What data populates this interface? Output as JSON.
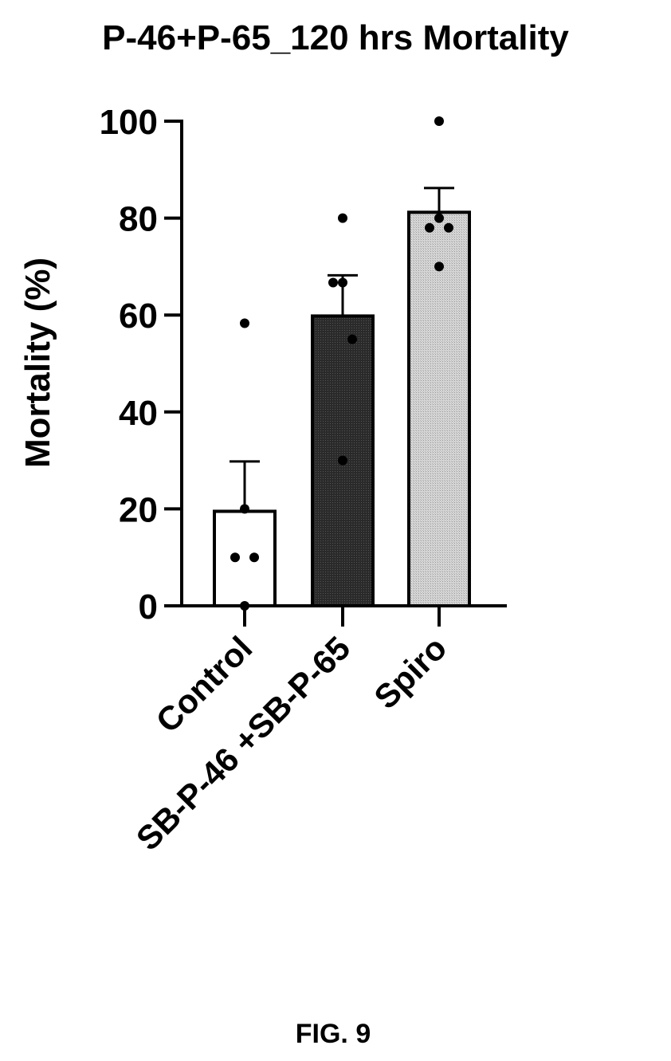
{
  "figure_label": "FIG. 9",
  "chart_data": {
    "type": "bar",
    "title": "P-46+P-65_120 hrs Mortality",
    "xlabel": "",
    "ylabel": "Mortality (%)",
    "ylim": [
      0,
      100
    ],
    "yticks": [
      0,
      20,
      40,
      60,
      80,
      100
    ],
    "grid": false,
    "categories": [
      "Control",
      "SB-P-46 +SB-P-65",
      "Spiro"
    ],
    "values": [
      19.5,
      59.8,
      81.2
    ],
    "error": [
      10.3,
      8.4,
      5
    ],
    "points": [
      [
        58.3,
        20,
        10,
        10,
        0
      ],
      [
        80,
        66.7,
        66.7,
        55,
        30
      ],
      [
        100,
        80,
        78,
        78,
        70
      ]
    ],
    "bar_colors": [
      "#ffffff",
      "#1e1e1e",
      "#cfcfcf"
    ]
  }
}
